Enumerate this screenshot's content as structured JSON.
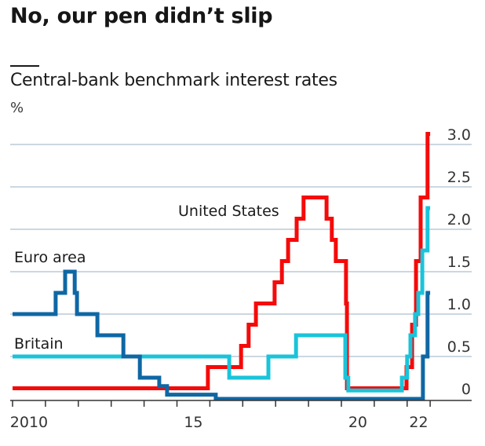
{
  "header": {
    "title": "No, our pen didn’t slip",
    "subtitle": "Central-bank benchmark interest rates",
    "unit": "%"
  },
  "colors": {
    "united_states": "#f50a0a",
    "britain": "#19c4da",
    "euro_area": "#0f67a4",
    "gridline": "#bccad6",
    "axis": "#333333"
  },
  "chart_data": {
    "type": "line",
    "step": true,
    "title": "Central-bank benchmark interest rates",
    "ylabel": "%",
    "xlabel": "",
    "xlim": [
      2010,
      2022.7
    ],
    "ylim": [
      0,
      3.0
    ],
    "grid": true,
    "y_axis_position": "right",
    "y_ticks": [
      {
        "value": 0,
        "label": "0"
      },
      {
        "value": 0.5,
        "label": "0.5"
      },
      {
        "value": 1.0,
        "label": "1.0"
      },
      {
        "value": 1.5,
        "label": "1.5"
      },
      {
        "value": 2.0,
        "label": "2.0"
      },
      {
        "value": 2.5,
        "label": "2.5"
      },
      {
        "value": 3.0,
        "label": "3.0"
      }
    ],
    "x_ticks": [
      2010,
      2011,
      2012,
      2013,
      2014,
      2015,
      2016,
      2017,
      2018,
      2019,
      2020,
      2021,
      2022,
      2022.7
    ],
    "x_tick_labels": [
      {
        "from": 2010,
        "to": 2011,
        "label": "2010"
      },
      {
        "from": 2015,
        "to": 2016,
        "label": "15"
      },
      {
        "from": 2020,
        "to": 2021,
        "label": "20"
      },
      {
        "from": 2022,
        "to": 2022.7,
        "label": "22"
      }
    ],
    "series": [
      {
        "name": "Euro area",
        "key": "euro_area",
        "label": "Euro area",
        "steps": [
          [
            2010.0,
            1.0
          ],
          [
            2011.31,
            1.25
          ],
          [
            2011.6,
            1.5
          ],
          [
            2011.89,
            1.25
          ],
          [
            2011.96,
            1.0
          ],
          [
            2012.58,
            0.75
          ],
          [
            2013.37,
            0.5
          ],
          [
            2013.87,
            0.25
          ],
          [
            2014.46,
            0.15
          ],
          [
            2014.7,
            0.05
          ],
          [
            2016.18,
            0.0
          ],
          [
            2022.48,
            0.5
          ],
          [
            2022.62,
            1.25
          ],
          [
            2022.7,
            1.25
          ]
        ]
      },
      {
        "name": "Britain",
        "key": "britain",
        "label": "Britain",
        "steps": [
          [
            2010.0,
            0.5
          ],
          [
            2016.59,
            0.25
          ],
          [
            2017.78,
            0.5
          ],
          [
            2018.62,
            0.75
          ],
          [
            2020.12,
            0.25
          ],
          [
            2020.21,
            0.1
          ],
          [
            2021.84,
            0.25
          ],
          [
            2022.0,
            0.5
          ],
          [
            2022.1,
            0.75
          ],
          [
            2022.24,
            1.0
          ],
          [
            2022.34,
            1.25
          ],
          [
            2022.46,
            1.75
          ],
          [
            2022.62,
            2.25
          ],
          [
            2022.7,
            2.25
          ]
        ]
      },
      {
        "name": "United States",
        "key": "united_states",
        "label": "United States",
        "steps": [
          [
            2010.0,
            0.125
          ],
          [
            2015.94,
            0.375
          ],
          [
            2016.95,
            0.625
          ],
          [
            2017.18,
            0.875
          ],
          [
            2017.4,
            1.125
          ],
          [
            2017.97,
            1.375
          ],
          [
            2018.19,
            1.625
          ],
          [
            2018.38,
            1.875
          ],
          [
            2018.64,
            2.125
          ],
          [
            2018.85,
            2.375
          ],
          [
            2019.55,
            2.125
          ],
          [
            2019.71,
            1.875
          ],
          [
            2019.83,
            1.625
          ],
          [
            2020.14,
            1.125
          ],
          [
            2020.17,
            0.125
          ],
          [
            2021.98,
            0.375
          ],
          [
            2022.15,
            0.875
          ],
          [
            2022.27,
            1.625
          ],
          [
            2022.41,
            2.375
          ],
          [
            2022.62,
            3.125
          ],
          [
            2022.7,
            3.125
          ]
        ]
      }
    ],
    "annotations": [
      {
        "text": "United States",
        "series": "united_states",
        "near": {
          "x": 2015.3,
          "y": 2.25
        }
      },
      {
        "text": "Euro area",
        "series": "euro_area",
        "near": {
          "x": 2010.05,
          "y": 1.6
        }
      },
      {
        "text": "Britain",
        "series": "britain",
        "near": {
          "x": 2010.05,
          "y": 0.6
        }
      }
    ]
  }
}
